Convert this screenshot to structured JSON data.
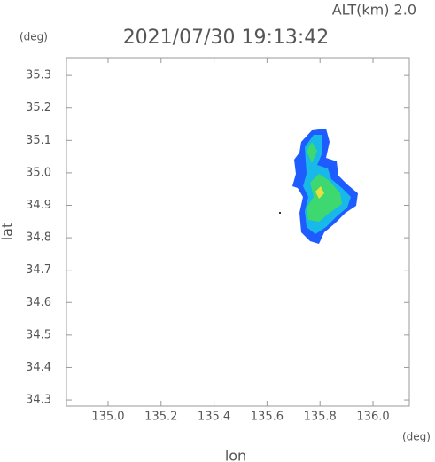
{
  "chart_data": {
    "type": "map",
    "title": "2021/07/30 19:13:42",
    "altitude_label": "ALT(km) 2.0",
    "y_unit": "(deg)",
    "x_unit": "(deg)",
    "xlabel": "lon",
    "ylabel": "lat",
    "xlim": [
      134.843,
      136.137
    ],
    "ylim": [
      34.281,
      35.355
    ],
    "xticks": [
      {
        "value": 135.0,
        "label": "135.0"
      },
      135.2,
      135.4,
      135.6,
      135.8,
      {
        "value": 136.0,
        "label": "136.0"
      }
    ],
    "yticks": [
      34.3,
      34.4,
      34.5,
      34.6,
      34.7,
      34.8,
      34.9,
      {
        "value": 35.0,
        "label": "35.0"
      },
      35.1,
      35.2,
      35.3
    ]
  }
}
